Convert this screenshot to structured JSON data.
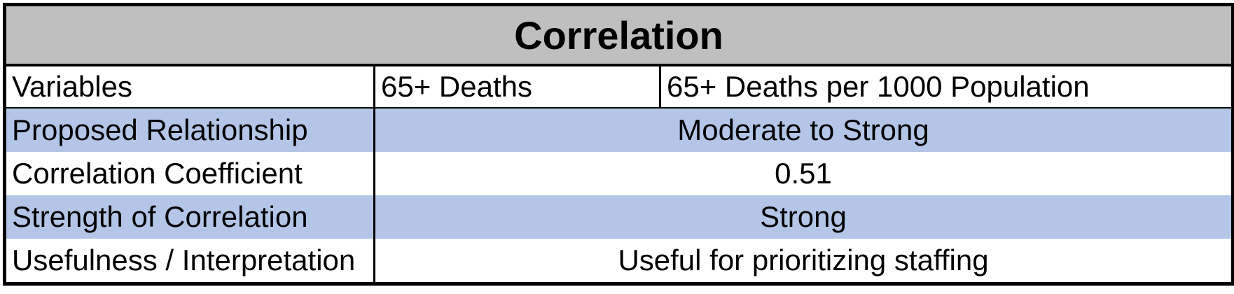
{
  "title": "Correlation",
  "variables": {
    "label": "Variables",
    "var_1": "65+ Deaths",
    "var_2": "65+ Deaths per 1000 Population"
  },
  "rows": [
    {
      "label": "Proposed Relationship",
      "value": "Moderate to Strong",
      "shaded": true
    },
    {
      "label": "Correlation Coefficient",
      "value": "0.51",
      "shaded": false
    },
    {
      "label": "Strength of Correlation",
      "value": "Strong",
      "shaded": true
    },
    {
      "label": "Usefulness / Interpretation",
      "value": "Useful for prioritizing staffing",
      "shaded": false
    }
  ],
  "colors": {
    "title_background": "#bfbfbf",
    "shaded_row": "#b4c6e7",
    "border": "#000000"
  }
}
